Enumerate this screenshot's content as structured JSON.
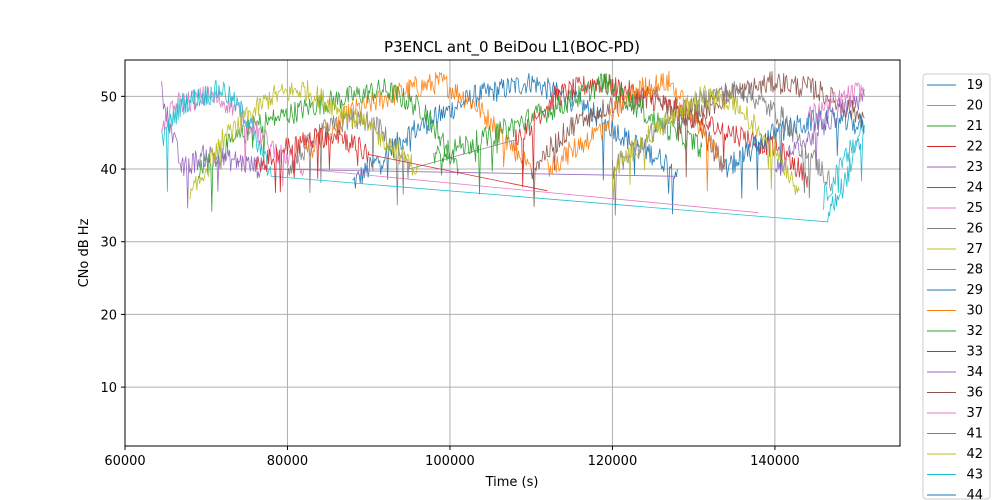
{
  "chart_data": {
    "type": "line",
    "title": "P3ENCL ant_0 BeiDou L1(BOC-PD)",
    "xlabel": "Time (s)",
    "ylabel": "CNo dB Hz",
    "xlim": [
      60000,
      155400
    ],
    "ylim": [
      1.9,
      55
    ],
    "xticks": [
      60000,
      80000,
      100000,
      120000,
      140000
    ],
    "yticks": [
      10,
      20,
      30,
      40,
      50
    ],
    "grid": true,
    "legend_placement": "outside-right",
    "series": [
      {
        "name": "19",
        "color": "#1f77b4",
        "passes": [
          [
            [
              88000,
              38
            ],
            [
              95000,
              45
            ],
            [
              103000,
              50
            ],
            [
              110000,
              52
            ],
            [
              116000,
              49
            ],
            [
              122000,
              44
            ],
            [
              128000,
              40
            ]
          ]
        ]
      },
      {
        "name": "20",
        "color": "#ff7f0e",
        "passes": [
          [
            [
              82000,
              42
            ],
            [
              88000,
              48
            ],
            [
              95000,
              51
            ],
            [
              99000,
              52
            ],
            [
              103000,
              49
            ],
            [
              107000,
              44
            ],
            [
              110000,
              40
            ]
          ]
        ]
      },
      {
        "name": "21",
        "color": "#2ca02c",
        "passes": [
          [
            [
              69000,
              40
            ],
            [
              76000,
              46
            ],
            [
              84000,
              49
            ],
            [
              92000,
              51
            ],
            [
              97000,
              48
            ],
            [
              101000,
              40
            ]
          ]
        ]
      },
      {
        "name": "22",
        "color": "#d62728",
        "passes": [
          [
            [
              108000,
              44
            ],
            [
              113000,
              50
            ],
            [
              118000,
              52
            ],
            [
              124000,
              50
            ],
            [
              132000,
              46
            ],
            [
              140000,
              43
            ],
            [
              144000,
              39
            ]
          ]
        ]
      },
      {
        "name": "23",
        "color": "#9467bd",
        "passes": [
          [
            [
              64500,
              51
            ],
            [
              65500,
              46
            ],
            [
              67000,
              40
            ],
            [
              70000,
              42
            ],
            [
              74000,
              41
            ],
            [
              77000,
              40
            ]
          ],
          [
            [
              128000,
              39
            ]
          ]
        ]
      },
      {
        "name": "24",
        "color": "#8c564b",
        "passes": [
          [
            [
              110000,
              40
            ],
            [
              115000,
              46
            ],
            [
              120000,
              49
            ],
            [
              125000,
              50
            ],
            [
              130000,
              47
            ],
            [
              134000,
              40
            ]
          ]
        ]
      },
      {
        "name": "25",
        "color": "#e377c2",
        "passes": [
          [
            [
              64500,
              46
            ],
            [
              66500,
              49
            ],
            [
              70000,
              50
            ],
            [
              73000,
              49
            ],
            [
              78000,
              43
            ],
            [
              82000,
              40
            ]
          ],
          [
            [
              138000,
              34
            ]
          ]
        ]
      },
      {
        "name": "26",
        "color": "#7f7f7f",
        "passes": [
          [
            [
              80000,
              40
            ],
            [
              84000,
              45
            ],
            [
              88000,
              47
            ],
            [
              91000,
              46
            ],
            [
              95000,
              40
            ]
          ],
          [
            [
              108000,
              44
            ]
          ]
        ]
      },
      {
        "name": "27",
        "color": "#bcbd22",
        "passes": [
          [
            [
              68000,
              36
            ],
            [
              72000,
              44
            ],
            [
              78000,
              50
            ],
            [
              82000,
              51
            ],
            [
              87000,
              48
            ],
            [
              92000,
              44
            ],
            [
              96000,
              40
            ]
          ]
        ]
      },
      {
        "name": "28",
        "color": "#17becf",
        "passes": [
          [
            [
              64500,
              44
            ],
            [
              67000,
              49
            ],
            [
              72000,
              51
            ],
            [
              75000,
              47
            ],
            [
              78000,
              39
            ]
          ],
          [
            [
              146500,
              33.5
            ],
            [
              148500,
              38
            ],
            [
              151000,
              45
            ]
          ]
        ]
      },
      {
        "name": "29",
        "color": "#1f77b4",
        "passes": [
          [
            [
              134000,
              40
            ],
            [
              140000,
              45
            ],
            [
              146000,
              47
            ],
            [
              151000,
              46
            ]
          ]
        ]
      },
      {
        "name": "30",
        "color": "#ff7f0e",
        "passes": [
          [
            [
              112000,
              40
            ],
            [
              118000,
              45
            ],
            [
              123000,
              51
            ],
            [
              127000,
              52
            ],
            [
              130000,
              47
            ],
            [
              133000,
              42
            ]
          ]
        ]
      },
      {
        "name": "32",
        "color": "#2ca02c",
        "passes": [
          [
            [
              98000,
              42
            ],
            [
              104000,
              44
            ],
            [
              110000,
              47
            ],
            [
              116000,
              50
            ],
            [
              119000,
              52
            ],
            [
              126000,
              46
            ],
            [
              131000,
              43
            ]
          ]
        ]
      },
      {
        "name": "33",
        "color": "#d62728",
        "passes": [
          [
            [
              76000,
              40
            ],
            [
              80000,
              43
            ],
            [
              86000,
              45
            ],
            [
              90000,
              42
            ]
          ],
          [
            [
              112000,
              37
            ]
          ]
        ]
      },
      {
        "name": "34",
        "color": "#9467bd",
        "passes": [
          [
            [
              140000,
              40
            ],
            [
              144000,
              44
            ],
            [
              148000,
              48
            ],
            [
              151000,
              50
            ]
          ]
        ]
      },
      {
        "name": "36",
        "color": "#8c564b",
        "passes": [
          [
            [
              128000,
              46
            ],
            [
              134000,
              50
            ],
            [
              140000,
              52
            ],
            [
              145000,
              51
            ],
            [
              151000,
              47
            ]
          ]
        ]
      },
      {
        "name": "37",
        "color": "#e377c2",
        "passes": [
          [
            [
              144000,
              47
            ],
            [
              147000,
              49
            ],
            [
              151000,
              51
            ]
          ]
        ]
      },
      {
        "name": "41",
        "color": "#7f7f7f",
        "passes": [
          [
            [
              120000,
              40
            ],
            [
              126000,
              46
            ],
            [
              132000,
              50
            ],
            [
              136000,
              51
            ],
            [
              141000,
              47
            ],
            [
              147000,
              38
            ]
          ]
        ]
      },
      {
        "name": "42",
        "color": "#bcbd22",
        "passes": [
          [
            [
              120000,
              40
            ],
            [
              126000,
              46
            ],
            [
              131000,
              50
            ],
            [
              135000,
              49
            ],
            [
              140000,
              43
            ],
            [
              143000,
              37
            ]
          ]
        ]
      },
      {
        "name": "43",
        "color": "#17becf",
        "passes": [
          [
            [
              146000,
              36
            ],
            [
              149000,
              42
            ],
            [
              151000,
              46
            ]
          ]
        ]
      },
      {
        "name": "44",
        "color": "#1f77b4",
        "passes": []
      }
    ]
  }
}
